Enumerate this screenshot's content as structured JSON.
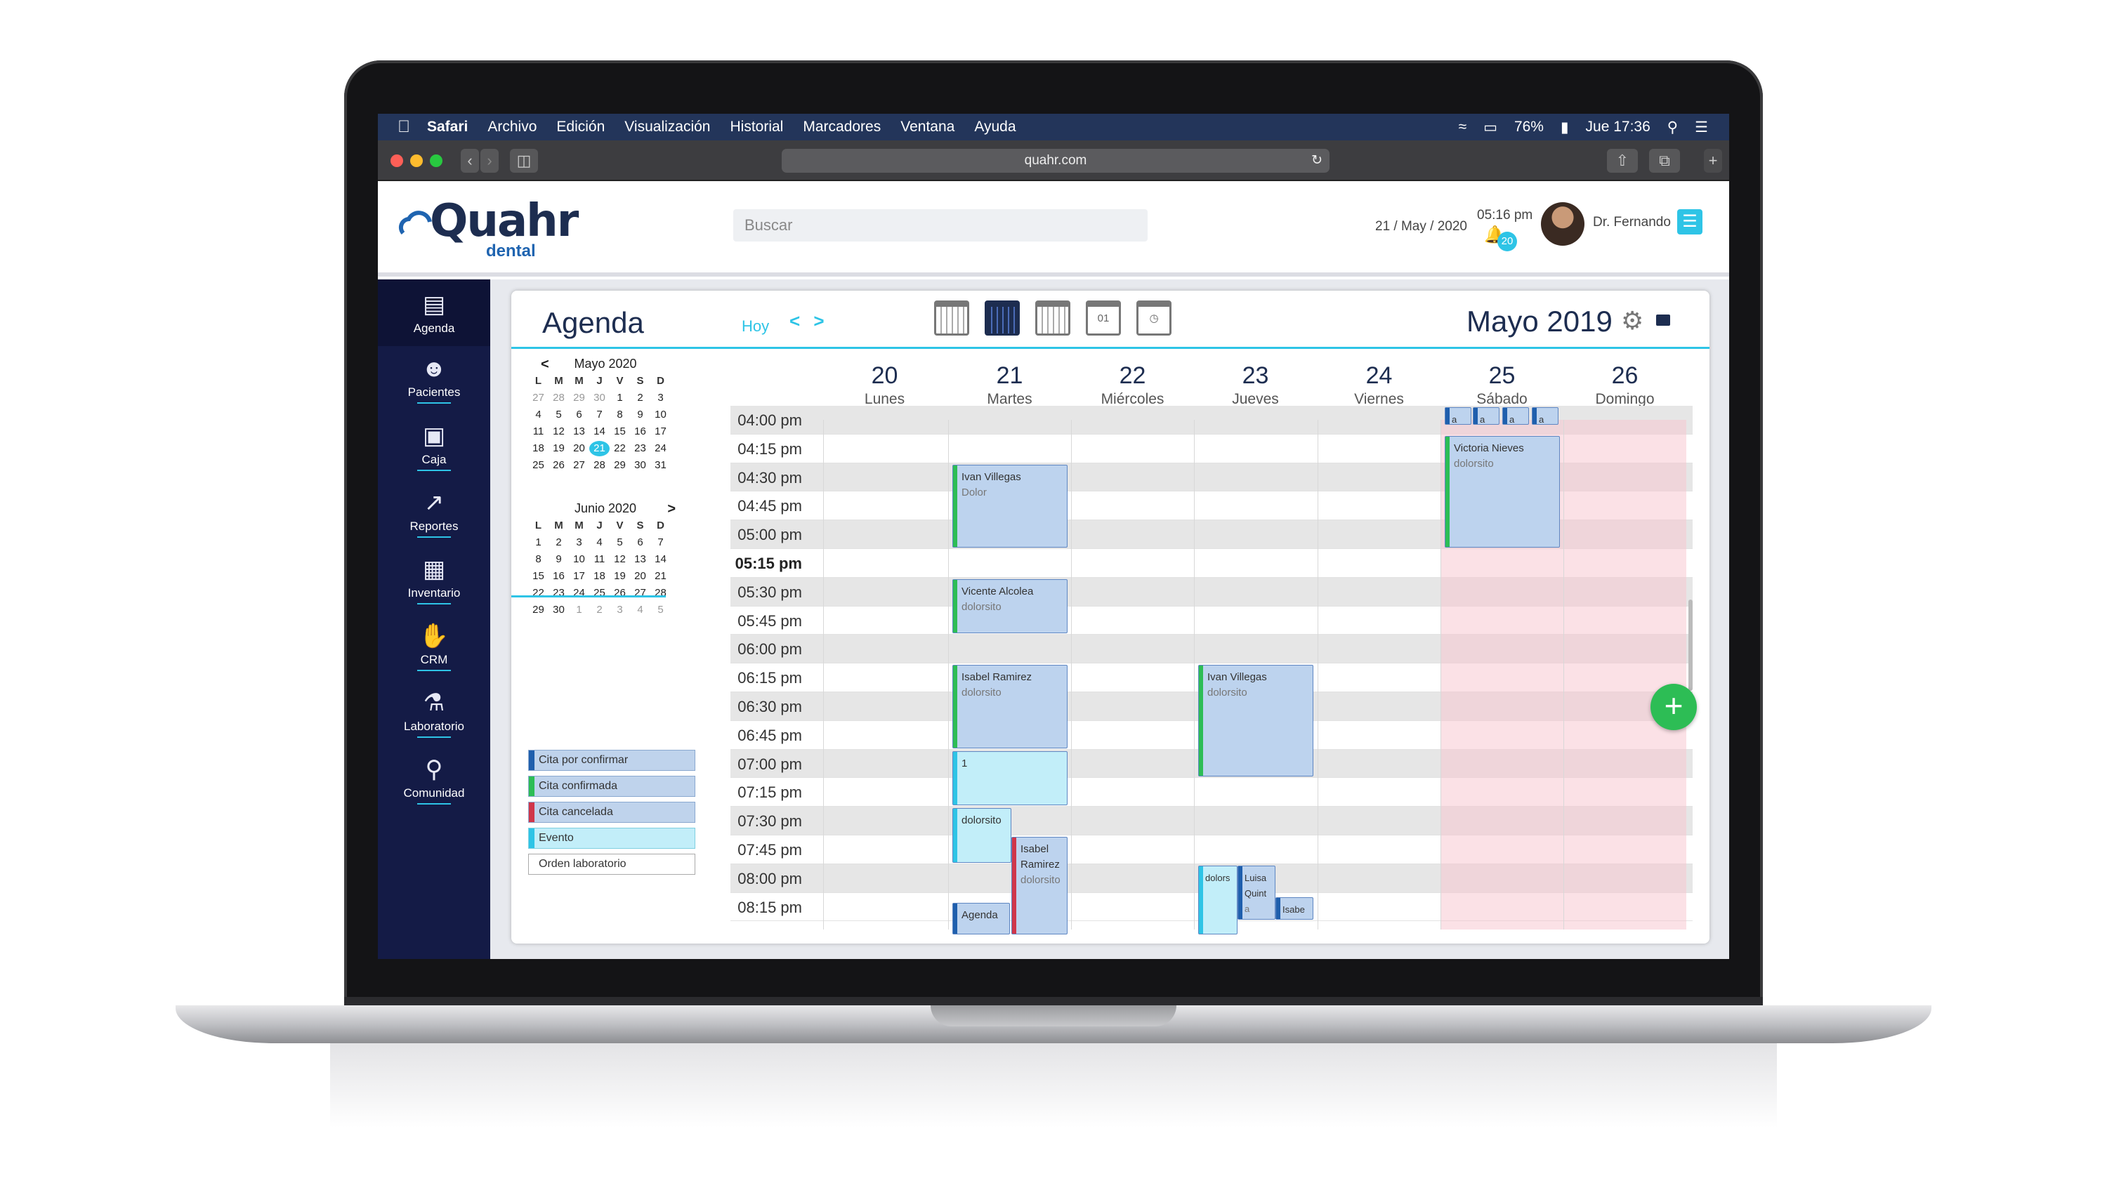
{
  "menubar": {
    "apple": "",
    "app": "Safari",
    "items": [
      "Archivo",
      "Edición",
      "Visualización",
      "Historial",
      "Marcadores",
      "Ventana",
      "Ayuda"
    ],
    "battery": "76%",
    "clock": "Jue 17:36"
  },
  "browser": {
    "url": "quahr.com"
  },
  "header": {
    "logo_main": "Quahr",
    "logo_sub": "dental",
    "search_placeholder": "Buscar",
    "date": "21 / May / 2020",
    "time": "05:16 pm",
    "notif_count": "20",
    "user": "Dr. Fernando"
  },
  "sidebar": {
    "items": [
      {
        "label": "Agenda",
        "icon": "agenda-icon"
      },
      {
        "label": "Pacientes",
        "icon": "patients-icon"
      },
      {
        "label": "Caja",
        "icon": "cash-icon"
      },
      {
        "label": "Reportes",
        "icon": "reports-icon"
      },
      {
        "label": "Inventario",
        "icon": "inventory-icon"
      },
      {
        "label": "CRM",
        "icon": "handshake-icon"
      },
      {
        "label": "Laboratorio",
        "icon": "microscope-icon"
      },
      {
        "label": "Comunidad",
        "icon": "community-icon"
      }
    ]
  },
  "agenda": {
    "title": "Agenda",
    "today": "Hoy",
    "nav": "< >",
    "month_title": "Mayo 2019",
    "view_day_label": "01"
  },
  "minical": [
    {
      "title": "Mayo 2020",
      "prev": "<",
      "next": "",
      "weeks": [
        [
          "27",
          "28",
          "29",
          "30",
          "1",
          "2",
          "3"
        ],
        [
          "4",
          "5",
          "6",
          "7",
          "8",
          "9",
          "10"
        ],
        [
          "11",
          "12",
          "13",
          "14",
          "15",
          "16",
          "17"
        ],
        [
          "18",
          "19",
          "20",
          "21",
          "22",
          "23",
          "24"
        ],
        [
          "25",
          "26",
          "27",
          "28",
          "29",
          "30",
          "31"
        ]
      ],
      "today": "21"
    },
    {
      "title": "Junio 2020",
      "prev": "",
      "next": ">",
      "weeks": [
        [
          "1",
          "2",
          "3",
          "4",
          "5",
          "6",
          "7"
        ],
        [
          "8",
          "9",
          "10",
          "11",
          "12",
          "13",
          "14"
        ],
        [
          "15",
          "16",
          "17",
          "18",
          "19",
          "20",
          "21"
        ],
        [
          "22",
          "23",
          "24",
          "25",
          "26",
          "27",
          "28"
        ],
        [
          "29",
          "30",
          "1",
          "2",
          "3",
          "4",
          "5"
        ]
      ],
      "today": ""
    }
  ],
  "weekday_initials": [
    "L",
    "M",
    "M",
    "J",
    "V",
    "S",
    "D"
  ],
  "legend": [
    {
      "label": "Cita por confirmar",
      "color": "#1f5fad"
    },
    {
      "label": "Cita confirmada",
      "color": "#2dbd55"
    },
    {
      "label": "Cita cancelada",
      "color": "#d0364a"
    },
    {
      "label": "Evento",
      "color": "#2ec4e6"
    },
    {
      "label": "Orden laboratorio",
      "color": "#ffffff"
    }
  ],
  "days": [
    {
      "num": "20",
      "name": "Lunes"
    },
    {
      "num": "21",
      "name": "Martes"
    },
    {
      "num": "22",
      "name": "Miércoles"
    },
    {
      "num": "23",
      "name": "Jueves"
    },
    {
      "num": "24",
      "name": "Viernes"
    },
    {
      "num": "25",
      "name": "Sábado"
    },
    {
      "num": "26",
      "name": "Domingo"
    }
  ],
  "times": [
    "04:00 pm",
    "04:15 pm",
    "04:30 pm",
    "04:45 pm",
    "05:00 pm",
    "05:15 pm",
    "05:30 pm",
    "05:45 pm",
    "06:00 pm",
    "06:15 pm",
    "06:30 pm",
    "06:45 pm",
    "07:00 pm",
    "07:15 pm",
    "07:30 pm",
    "07:45 pm",
    "08:00 pm",
    "08:15 pm"
  ],
  "current_time": "05:15 pm",
  "events": [
    {
      "day": 1,
      "title": "Ivan Villegas",
      "sub": "Dolor",
      "color": "#2dbd55",
      "bg": "#bdd3ee"
    },
    {
      "day": 1,
      "title": "Vicente Alcolea",
      "sub": "dolorsito",
      "color": "#2dbd55",
      "bg": "#bdd3ee"
    },
    {
      "day": 1,
      "title": "Isabel Ramirez",
      "sub": "dolorsito",
      "color": "#2dbd55",
      "bg": "#bdd3ee"
    },
    {
      "day": 1,
      "title": "1",
      "sub": "",
      "color": "#2ec4e6",
      "bg": "#c2eef9"
    },
    {
      "day": 1,
      "title": "dolorsito",
      "sub": "",
      "color": "#2ec4e6",
      "bg": "#c2eef9"
    },
    {
      "day": 1,
      "title": "Isabel Ramirez",
      "sub": "dolorsito",
      "color": "#d0364a",
      "bg": "#bdd3ee"
    },
    {
      "day": 1,
      "title": "Agenda",
      "sub": "",
      "color": "#1f5fad",
      "bg": "#bdd3ee"
    },
    {
      "day": 3,
      "title": "Ivan Villegas",
      "sub": "dolorsito",
      "color": "#2dbd55",
      "bg": "#bdd3ee"
    },
    {
      "day": 3,
      "title": "dolors",
      "sub": "",
      "color": "#2ec4e6",
      "bg": "#c2eef9"
    },
    {
      "day": 3,
      "title": "Luisa Quint",
      "sub": "a",
      "color": "#1f5fad",
      "bg": "#bdd3ee"
    },
    {
      "day": 3,
      "title": "Isabe",
      "sub": "",
      "color": "#1f5fad",
      "bg": "#bdd3ee"
    },
    {
      "day": 5,
      "title": "Victoria Nieves",
      "sub": "dolorsito",
      "color": "#2dbd55",
      "bg": "#bdd3ee"
    },
    {
      "day": 5,
      "title": "a",
      "sub": "",
      "color": "#1f5fad",
      "bg": "#bdd3ee"
    },
    {
      "day": 5,
      "title": "a",
      "sub": "",
      "color": "#1f5fad",
      "bg": "#bdd3ee"
    },
    {
      "day": 5,
      "title": "a",
      "sub": "",
      "color": "#1f5fad",
      "bg": "#bdd3ee"
    },
    {
      "day": 5,
      "title": "a",
      "sub": "",
      "color": "#1f5fad",
      "bg": "#bdd3ee"
    }
  ],
  "fab": "+"
}
